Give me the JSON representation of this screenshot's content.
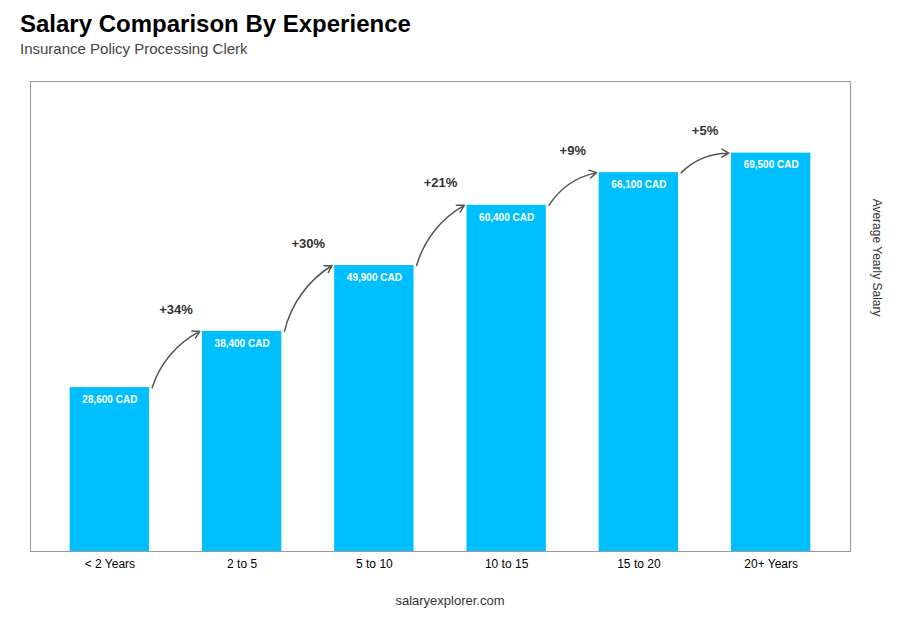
{
  "chart_data": {
    "type": "bar",
    "title": "Salary Comparison By Experience",
    "subtitle": "Insurance Policy Processing Clerk",
    "ylabel": "Average Yearly Salary",
    "categories": [
      "< 2 Years",
      "2 to 5",
      "5 to 10",
      "10 to 15",
      "15 to 20",
      "20+ Years"
    ],
    "values": [
      28600,
      38400,
      49900,
      60400,
      66100,
      69500
    ],
    "value_labels": [
      "28,600 CAD",
      "38,400 CAD",
      "49,900 CAD",
      "60,400 CAD",
      "66,100 CAD",
      "69,500 CAD"
    ],
    "data_labels": true,
    "annotations": [
      "+34%",
      "+30%",
      "+21%",
      "+9%",
      "+5%"
    ],
    "caption": "salaryexplorer.com",
    "color": "#00bfff",
    "ylim": [
      0,
      82000
    ],
    "tick_labels": "x",
    "grid": false
  }
}
